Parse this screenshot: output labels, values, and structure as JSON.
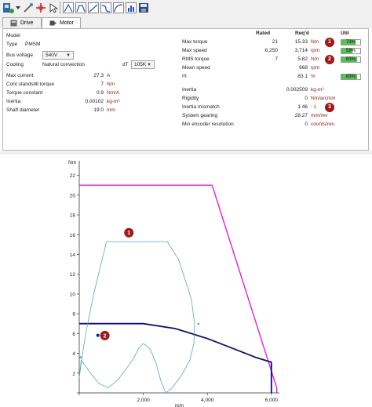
{
  "tabs": [
    {
      "label": "Drive",
      "active": false
    },
    {
      "label": "Motor",
      "active": true
    }
  ],
  "motor": {
    "model_label": "Model",
    "type_label": "Type",
    "type_value": "PMSM",
    "bus_voltage_label": "Bus voltage",
    "bus_voltage_value": "540V",
    "cooling_label": "Cooling",
    "cooling_value": "Natural convection",
    "dt_label": "dT",
    "dt_value": "105K",
    "rows": [
      {
        "label": "Max current",
        "value": "27.3",
        "unit": "A"
      },
      {
        "label": "Cont standstill torque",
        "value": "7",
        "unit": "Nm"
      },
      {
        "label": "Torque constant",
        "value": "0.9",
        "unit": "Nm/A"
      },
      {
        "label": "Inertia",
        "value": "0.00102",
        "unit": "kg-m²"
      },
      {
        "label": "Shaft diameter",
        "value": "19.0",
        "unit": "mm"
      }
    ]
  },
  "results": {
    "col_rated": "Rated",
    "col_reqd": "Req'd",
    "col_util": "Util",
    "rows1": [
      {
        "label": "Max torque",
        "rated": "21",
        "reqd": "15.33",
        "unit": "Nm",
        "badge": "1",
        "util": "73%",
        "util_fraction": 0.73
      },
      {
        "label": "Max speed",
        "rated": "6,250",
        "reqd": "3,714",
        "unit": "rpm",
        "badge": "",
        "util": "59%",
        "util_fraction": 0.59
      },
      {
        "label": "RMS torque",
        "rated": "7",
        "reqd": "5.82",
        "unit": "Nm",
        "badge": "2",
        "util": "83%",
        "util_fraction": 0.83
      },
      {
        "label": "Mean speed",
        "rated": "",
        "reqd": "668",
        "unit": "rpm",
        "badge": "",
        "util": "",
        "util_fraction": null
      },
      {
        "label": "I²t",
        "rated": "",
        "reqd": "83.1",
        "unit": "%",
        "badge": "",
        "util": "83%",
        "util_fraction": 0.83
      }
    ],
    "rows2": [
      {
        "label": "Inertia",
        "reqd": "0.002509",
        "unit": "kg-m²",
        "badge": ""
      },
      {
        "label": "Rigidity",
        "reqd": "0",
        "unit": "Nm/arcmin",
        "badge": ""
      },
      {
        "label": "Inertia mismatch",
        "reqd": "1.46",
        "unit": ": 1",
        "badge": "3"
      },
      {
        "label": "System gearing",
        "reqd": "28.27",
        "unit": "mm/rev",
        "badge": ""
      },
      {
        "label": "Min encoder resolution",
        "reqd": "0",
        "unit": "counts/rev",
        "badge": ""
      }
    ]
  },
  "colors": {
    "peak_envelope": "#e020e0",
    "continuous_curve": "#10106e",
    "motion_profile": "#5aa8b4",
    "badge": "#a01818",
    "util_fill": "#54c154"
  },
  "chart_data": {
    "type": "line",
    "xlabel": "rpm",
    "ylabel": "Nm",
    "xlim": [
      0,
      6250
    ],
    "ylim": [
      0,
      23
    ],
    "x_ticks": [
      0,
      2000,
      4000,
      6000
    ],
    "x_tick_labels": [
      "",
      "2,000",
      "4,000",
      "6,000"
    ],
    "y_ticks": [
      0,
      2,
      4,
      6,
      8,
      10,
      12,
      14,
      16,
      18,
      20,
      22
    ],
    "y_tick_labels": [
      "",
      "2",
      "4",
      "6",
      "8",
      "10",
      "12",
      "14",
      "16",
      "18",
      "20",
      "22"
    ],
    "grid": false,
    "series": [
      {
        "role": "peak",
        "x": [
          0,
          4150,
          6170,
          6170
        ],
        "y": [
          21,
          21,
          0.5,
          0
        ]
      },
      {
        "role": "continuous",
        "x": [
          0,
          2000,
          3000,
          4000,
          4800,
          5500,
          6000,
          6000
        ],
        "y": [
          7,
          7,
          6.5,
          5.5,
          4.5,
          3.6,
          3.1,
          0
        ]
      },
      {
        "role": "motion-profile",
        "x": [
          0,
          60,
          200,
          450,
          850,
          2750,
          3100,
          3350,
          3500,
          3600,
          3580,
          3450,
          3200,
          2900,
          2700,
          2550,
          2400,
          2200,
          2000,
          1850,
          1700,
          1500,
          1200,
          900,
          600,
          350,
          180,
          60,
          0
        ],
        "y": [
          1.5,
          3,
          6,
          10,
          15.3,
          15.3,
          13.5,
          11,
          9.5,
          7,
          5,
          3.3,
          1.8,
          0.5,
          0,
          1.2,
          3,
          4.5,
          5,
          4.5,
          3.5,
          2.6,
          1.3,
          0.5,
          1,
          2,
          2.8,
          3.3,
          1.5
        ]
      },
      {
        "role": "rms-point",
        "x": [
          580
        ],
        "y": [
          5.82
        ]
      },
      {
        "role": "marker-point",
        "x": [
          3720
        ],
        "y": [
          7
        ]
      },
      {
        "role": "marker-point-2",
        "x": [
          40
        ],
        "y": [
          3.6
        ]
      }
    ],
    "callouts": [
      {
        "label": "1",
        "x": 1550,
        "y": 16.2
      },
      {
        "label": "2",
        "x": 800,
        "y": 5.8
      }
    ]
  }
}
